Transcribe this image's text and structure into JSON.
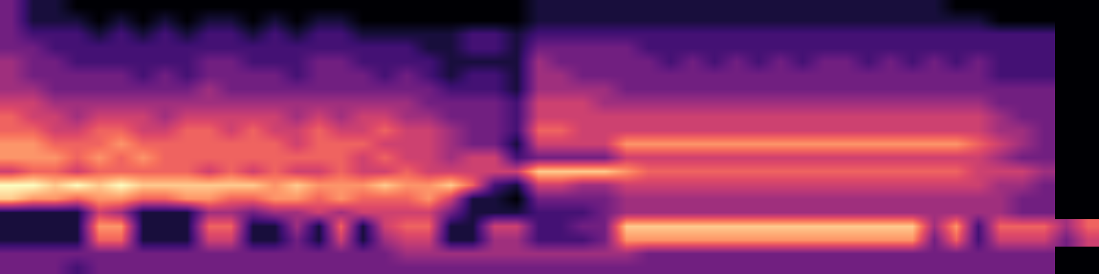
{
  "chart_data": {
    "type": "heatmap",
    "tick_labels": false,
    "zlim": [
      0,
      9
    ],
    "z": [
      [
        3,
        1,
        1,
        0,
        0,
        0,
        0,
        0,
        0,
        0,
        0,
        0,
        0,
        0,
        0,
        0,
        0,
        0,
        0,
        0,
        0,
        0,
        0,
        0,
        1,
        1,
        1,
        1,
        1,
        1,
        1,
        1,
        1,
        1,
        1,
        1,
        1,
        1,
        1,
        1,
        1,
        1,
        1,
        0,
        0,
        0,
        0,
        0
      ],
      [
        3,
        1,
        1,
        1,
        0,
        1,
        0,
        1,
        0,
        1,
        1,
        0,
        1,
        0,
        1,
        1,
        0,
        0,
        0,
        0,
        0,
        0,
        0,
        0,
        1,
        1,
        1,
        1,
        1,
        1,
        1,
        1,
        1,
        1,
        1,
        1,
        1,
        1,
        1,
        1,
        1,
        1,
        1,
        1,
        1,
        0,
        0,
        0
      ],
      [
        3,
        2,
        2,
        2,
        1,
        2,
        1,
        2,
        1,
        2,
        2,
        1,
        2,
        1,
        2,
        2,
        1,
        1,
        1,
        1,
        1,
        2,
        2,
        1,
        2,
        2,
        2,
        2,
        2,
        2,
        2,
        2,
        2,
        2,
        2,
        2,
        2,
        2,
        2,
        2,
        2,
        2,
        2,
        2,
        2,
        2,
        2,
        2
      ],
      [
        3,
        3,
        2,
        2,
        2,
        2,
        2,
        2,
        2,
        2,
        2,
        2,
        2,
        2,
        2,
        2,
        2,
        2,
        2,
        1,
        1,
        2,
        2,
        1,
        3,
        3,
        3,
        3,
        3,
        2,
        2,
        2,
        2,
        2,
        2,
        2,
        2,
        2,
        2,
        2,
        2,
        2,
        2,
        2,
        2,
        2,
        2,
        2
      ],
      [
        4,
        3,
        3,
        2,
        2,
        2,
        2,
        2,
        2,
        3,
        3,
        2,
        2,
        2,
        3,
        3,
        2,
        2,
        2,
        2,
        1,
        1,
        1,
        1,
        4,
        3,
        3,
        3,
        3,
        3,
        2,
        3,
        2,
        3,
        2,
        3,
        2,
        3,
        3,
        2,
        3,
        2,
        3,
        2,
        3,
        2,
        2,
        2
      ],
      [
        4,
        3,
        3,
        3,
        3,
        3,
        2,
        3,
        2,
        3,
        3,
        3,
        3,
        2,
        3,
        3,
        3,
        2,
        3,
        2,
        1,
        2,
        2,
        1,
        4,
        4,
        3,
        3,
        3,
        3,
        3,
        3,
        3,
        3,
        3,
        3,
        3,
        3,
        3,
        3,
        3,
        3,
        3,
        3,
        3,
        2,
        2,
        2
      ],
      [
        4,
        4,
        3,
        3,
        3,
        3,
        3,
        3,
        3,
        4,
        3,
        3,
        3,
        3,
        3,
        3,
        3,
        3,
        3,
        3,
        2,
        2,
        2,
        1,
        4,
        4,
        4,
        4,
        3,
        3,
        3,
        3,
        3,
        3,
        3,
        3,
        3,
        3,
        3,
        3,
        3,
        3,
        3,
        3,
        3,
        3,
        3,
        3
      ],
      [
        5,
        5,
        4,
        4,
        4,
        4,
        4,
        4,
        4,
        4,
        4,
        4,
        4,
        4,
        4,
        4,
        4,
        4,
        4,
        3,
        3,
        3,
        3,
        2,
        5,
        5,
        5,
        4,
        4,
        4,
        4,
        4,
        4,
        4,
        4,
        4,
        4,
        4,
        4,
        4,
        4,
        4,
        4,
        4,
        4,
        3,
        3,
        3
      ],
      [
        6,
        5,
        5,
        4,
        5,
        5,
        5,
        4,
        5,
        5,
        5,
        5,
        5,
        4,
        5,
        4,
        5,
        5,
        4,
        4,
        3,
        3,
        3,
        2,
        5,
        5,
        5,
        5,
        5,
        5,
        5,
        5,
        5,
        5,
        5,
        5,
        5,
        5,
        5,
        5,
        5,
        5,
        5,
        5,
        5,
        4,
        3,
        3
      ],
      [
        6,
        6,
        5,
        5,
        6,
        6,
        5,
        5,
        6,
        6,
        5,
        6,
        5,
        5,
        6,
        5,
        5,
        6,
        5,
        5,
        4,
        3,
        3,
        2,
        6,
        6,
        5,
        5,
        5,
        5,
        5,
        5,
        5,
        5,
        5,
        5,
        5,
        5,
        5,
        5,
        5,
        5,
        5,
        5,
        5,
        4,
        4,
        3
      ],
      [
        7,
        7,
        6,
        6,
        6,
        7,
        6,
        6,
        6,
        6,
        6,
        6,
        6,
        5,
        6,
        6,
        6,
        5,
        5,
        5,
        4,
        3,
        3,
        1,
        5,
        5,
        5,
        5,
        7,
        7,
        7,
        7,
        7,
        7,
        7,
        7,
        7,
        7,
        7,
        7,
        7,
        7,
        7,
        7,
        6,
        5,
        4,
        3
      ],
      [
        7,
        7,
        7,
        6,
        7,
        6,
        7,
        6,
        6,
        6,
        6,
        6,
        6,
        6,
        6,
        6,
        5,
        6,
        5,
        5,
        4,
        5,
        5,
        2,
        3,
        3,
        3,
        3,
        5,
        5,
        5,
        5,
        5,
        5,
        5,
        5,
        5,
        5,
        5,
        5,
        5,
        5,
        5,
        5,
        5,
        4,
        3,
        3
      ],
      [
        5,
        6,
        6,
        5,
        6,
        6,
        6,
        6,
        6,
        5,
        6,
        5,
        6,
        5,
        5,
        6,
        5,
        5,
        6,
        5,
        5,
        5,
        5,
        5,
        8,
        8,
        8,
        8,
        7,
        6,
        6,
        6,
        6,
        6,
        6,
        6,
        6,
        6,
        6,
        6,
        6,
        6,
        6,
        6,
        5,
        5,
        5,
        4
      ],
      [
        9,
        9,
        8,
        9,
        8,
        9,
        8,
        8,
        8,
        8,
        8,
        8,
        7,
        8,
        7,
        7,
        7,
        8,
        7,
        7,
        8,
        6,
        2,
        1,
        5,
        5,
        4,
        4,
        5,
        5,
        5,
        5,
        5,
        5,
        5,
        5,
        5,
        5,
        5,
        5,
        5,
        5,
        5,
        5,
        5,
        4,
        4,
        3
      ],
      [
        8,
        7,
        7,
        6,
        7,
        7,
        6,
        6,
        7,
        7,
        6,
        6,
        7,
        7,
        6,
        7,
        6,
        6,
        6,
        7,
        5,
        1,
        1,
        0,
        3,
        3,
        3,
        3,
        4,
        4,
        4,
        4,
        4,
        4,
        4,
        4,
        4,
        4,
        4,
        4,
        4,
        4,
        4,
        4,
        4,
        4,
        3,
        3
      ],
      [
        1,
        1,
        1,
        1,
        5,
        4,
        1,
        1,
        1,
        4,
        4,
        3,
        4,
        4,
        5,
        4,
        5,
        5,
        5,
        5,
        3,
        1,
        1,
        1,
        2,
        2,
        2,
        3,
        4,
        4,
        4,
        4,
        4,
        4,
        4,
        4,
        4,
        4,
        4,
        4,
        4,
        4,
        4,
        4,
        4,
        4,
        3,
        3
      ],
      [
        1,
        1,
        1,
        1,
        7,
        7,
        1,
        1,
        1,
        6,
        6,
        1,
        1,
        4,
        1,
        6,
        1,
        5,
        6,
        6,
        1,
        1,
        5,
        5,
        2,
        2,
        3,
        3,
        8,
        8,
        8,
        8,
        8,
        8,
        8,
        8,
        8,
        8,
        8,
        8,
        8,
        8,
        4,
        7,
        2,
        6,
        6,
        6,
        4,
        6
      ],
      [
        1,
        1,
        1,
        1,
        6,
        6,
        1,
        1,
        1,
        5,
        5,
        1,
        1,
        3,
        1,
        5,
        1,
        4,
        5,
        5,
        1,
        1,
        4,
        4,
        2,
        2,
        2,
        3,
        7,
        7,
        7,
        7,
        7,
        7,
        7,
        7,
        7,
        7,
        7,
        7,
        7,
        7,
        3,
        6,
        2,
        5,
        5,
        5,
        3,
        5
      ],
      [
        3,
        3,
        3,
        3,
        3,
        3,
        3,
        3,
        3,
        3,
        3,
        3,
        3,
        3,
        3,
        3,
        3,
        3,
        4,
        4,
        4,
        4,
        4,
        4,
        4,
        4,
        4,
        4,
        4,
        3,
        3,
        3,
        3,
        3,
        3,
        3,
        3,
        3,
        3,
        3,
        3,
        3,
        3,
        3,
        3,
        3,
        3,
        3
      ],
      [
        3,
        3,
        3,
        2,
        3,
        3,
        3,
        3,
        3,
        3,
        3,
        3,
        3,
        3,
        3,
        3,
        3,
        3,
        3,
        3,
        3,
        3,
        3,
        3,
        3,
        3,
        3,
        3,
        3,
        3,
        3,
        3,
        3,
        3,
        3,
        3,
        3,
        3,
        3,
        3,
        3,
        3,
        3,
        3,
        3,
        3,
        3,
        3
      ]
    ]
  }
}
